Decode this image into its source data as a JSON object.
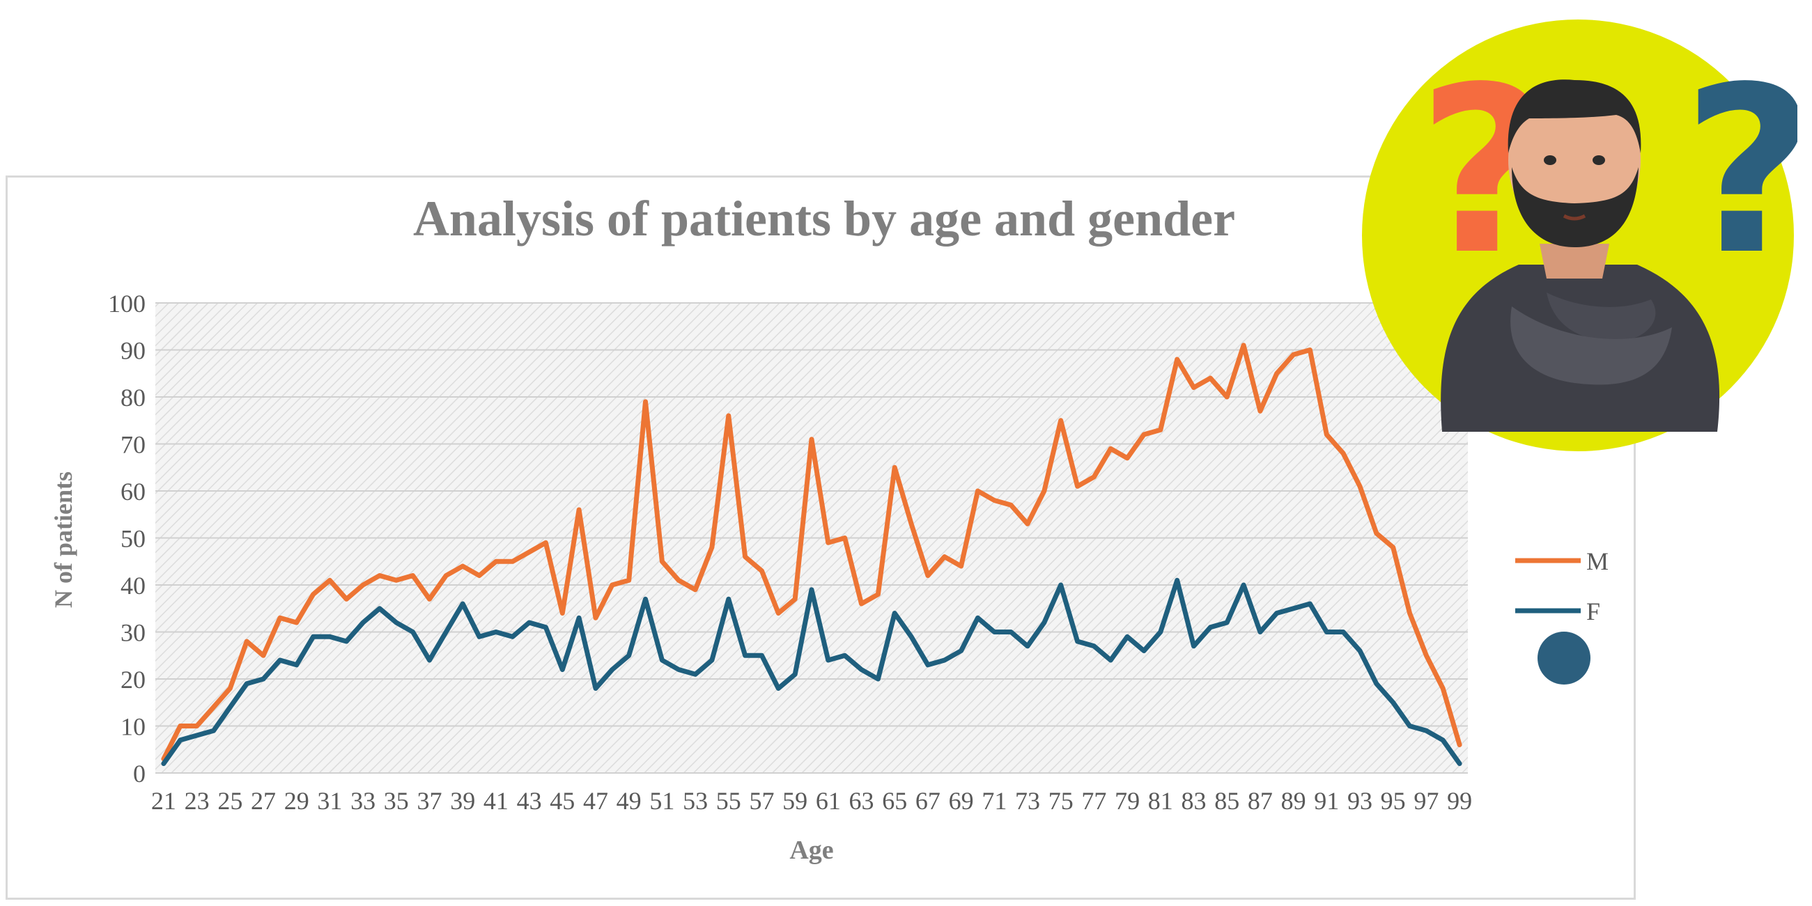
{
  "chart_data": {
    "type": "line",
    "title": "Analysis of patients by age and gender",
    "xlabel": "Age",
    "ylabel": "N of patients",
    "ylim": [
      0,
      100
    ],
    "yticks": [
      0,
      10,
      20,
      30,
      40,
      50,
      60,
      70,
      80,
      90,
      100
    ],
    "x": [
      21,
      22,
      23,
      24,
      25,
      26,
      27,
      28,
      29,
      30,
      31,
      32,
      33,
      34,
      35,
      36,
      37,
      38,
      39,
      40,
      41,
      42,
      43,
      44,
      45,
      46,
      47,
      48,
      49,
      50,
      51,
      52,
      53,
      54,
      55,
      56,
      57,
      58,
      59,
      60,
      61,
      62,
      63,
      64,
      65,
      66,
      67,
      68,
      69,
      70,
      71,
      72,
      73,
      74,
      75,
      76,
      77,
      78,
      79,
      80,
      81,
      82,
      83,
      84,
      85,
      86,
      87,
      88,
      89,
      90,
      91,
      92,
      93,
      94,
      95,
      96,
      97,
      98,
      99
    ],
    "xtick_labels": [
      "21",
      "23",
      "25",
      "27",
      "29",
      "31",
      "33",
      "35",
      "37",
      "39",
      "41",
      "43",
      "45",
      "47",
      "49",
      "51",
      "53",
      "55",
      "57",
      "59",
      "61",
      "63",
      "65",
      "67",
      "69",
      "71",
      "73",
      "75",
      "77",
      "79",
      "81",
      "83",
      "85",
      "87",
      "89",
      "91",
      "93",
      "95",
      "97",
      "99"
    ],
    "grid": true,
    "legend_position": "right",
    "series": [
      {
        "name": "M",
        "color": "#ED7534",
        "values": [
          3,
          10,
          10,
          14,
          18,
          28,
          25,
          33,
          32,
          38,
          41,
          37,
          40,
          42,
          41,
          42,
          37,
          42,
          44,
          42,
          45,
          45,
          47,
          49,
          34,
          56,
          33,
          40,
          41,
          79,
          45,
          41,
          39,
          48,
          76,
          46,
          43,
          34,
          37,
          71,
          49,
          50,
          36,
          38,
          65,
          53,
          42,
          46,
          44,
          60,
          58,
          57,
          53,
          60,
          75,
          61,
          63,
          69,
          67,
          72,
          73,
          88,
          82,
          84,
          80,
          91,
          77,
          85,
          89,
          90,
          72,
          68,
          61,
          51,
          48,
          34,
          25,
          18,
          6
        ]
      },
      {
        "name": "F",
        "color": "#1F5F7E",
        "values": [
          2,
          7,
          8,
          9,
          14,
          19,
          20,
          24,
          23,
          29,
          29,
          28,
          32,
          35,
          32,
          30,
          24,
          30,
          36,
          29,
          30,
          29,
          32,
          31,
          22,
          33,
          18,
          22,
          25,
          37,
          24,
          22,
          21,
          24,
          37,
          25,
          25,
          18,
          21,
          39,
          24,
          25,
          22,
          20,
          34,
          29,
          23,
          24,
          26,
          33,
          30,
          30,
          27,
          32,
          40,
          28,
          27,
          24,
          29,
          26,
          30,
          41,
          27,
          31,
          32,
          40,
          30,
          34,
          35,
          36,
          30,
          30,
          26,
          19,
          15,
          10,
          9,
          7,
          2
        ]
      }
    ]
  },
  "illustration": {
    "circle_color": "#E2E700",
    "question_mark_left": "?",
    "question_mark_right": "?",
    "left_mark_color": "#F56C3F",
    "right_mark_color": "#2C5F7E",
    "icon": "thinking-man-icon"
  }
}
